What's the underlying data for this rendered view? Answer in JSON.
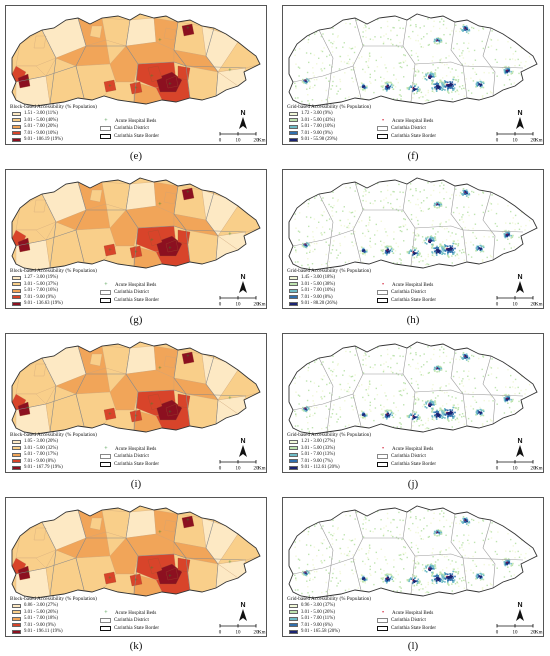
{
  "panels": [
    {
      "id": "e",
      "type": "block",
      "caption": "(e)",
      "legend_title": "Block-based Accessibility (% Population)",
      "classes": [
        {
          "label": "1.51 - 3.00 (11%)",
          "color": "#fde9c4"
        },
        {
          "label": "3.01 - 5.00 (40%)",
          "color": "#f9cf8a"
        },
        {
          "label": "5.01 - 7.00 (20%)",
          "color": "#f1a559"
        },
        {
          "label": "7.01 - 9.00 (10%)",
          "color": "#d8442a"
        },
        {
          "label": "9.01 - 106.19 (19%)",
          "color": "#8c1020"
        }
      ]
    },
    {
      "id": "f",
      "type": "grid",
      "caption": "(f)",
      "legend_title": "Grid-based Accessibility (% Population)",
      "classes": [
        {
          "label": "1.72 - 3.00 (9%)",
          "color": "#f1f8d8"
        },
        {
          "label": "3.01 - 5.00 (43%)",
          "color": "#bfe4b0"
        },
        {
          "label": "5.01 - 7.00 (10%)",
          "color": "#6fbcc6"
        },
        {
          "label": "7.01 - 9.00 (9%)",
          "color": "#2f6fae"
        },
        {
          "label": "9.01 - 55.98 (29%)",
          "color": "#1a2372"
        }
      ]
    },
    {
      "id": "g",
      "type": "block",
      "caption": "(g)",
      "legend_title": "Block-based Accessibility (% Population)",
      "classes": [
        {
          "label": "1.27 - 3.00 (19%)",
          "color": "#fde9c4"
        },
        {
          "label": "3.01 - 5.00 (37%)",
          "color": "#f9cf8a"
        },
        {
          "label": "5.01 - 7.00 (16%)",
          "color": "#f1a559"
        },
        {
          "label": "7.01 - 9.00 (9%)",
          "color": "#d8442a"
        },
        {
          "label": "9.01 - 136.63 (19%)",
          "color": "#8c1020"
        }
      ]
    },
    {
      "id": "h",
      "type": "grid",
      "caption": "(h)",
      "legend_title": "Grid-based Accessibility (% Population)",
      "classes": [
        {
          "label": "1.45 - 3.00 (18%)",
          "color": "#f1f8d8"
        },
        {
          "label": "3.01 - 5.00 (38%)",
          "color": "#bfe4b0"
        },
        {
          "label": "5.01 - 7.00 (10%)",
          "color": "#6fbcc6"
        },
        {
          "label": "7.01 - 9.00 (8%)",
          "color": "#2f6fae"
        },
        {
          "label": "9.01 - 88.20 (26%)",
          "color": "#1a2372"
        }
      ]
    },
    {
      "id": "i",
      "type": "block",
      "caption": "(i)",
      "legend_title": "Block-based Accessibility (% Population)",
      "classes": [
        {
          "label": "1.05 - 3.00 (20%)",
          "color": "#fde9c4"
        },
        {
          "label": "3.01 - 5.00 (32%)",
          "color": "#f9cf8a"
        },
        {
          "label": "5.01 - 7.00 (17%)",
          "color": "#f1a559"
        },
        {
          "label": "7.01 - 9.00 (8%)",
          "color": "#d8442a"
        },
        {
          "label": "9.01 - 167.79 (19%)",
          "color": "#8c1020"
        }
      ]
    },
    {
      "id": "j",
      "type": "grid",
      "caption": "(j)",
      "legend_title": "Grid-based Accessibility (% Population)",
      "classes": [
        {
          "label": "1.21 - 3.00 (27%)",
          "color": "#f1f8d8"
        },
        {
          "label": "3.01 - 5.00 (33%)",
          "color": "#bfe4b0"
        },
        {
          "label": "5.01 - 7.00 (13%)",
          "color": "#6fbcc6"
        },
        {
          "label": "7.01 - 9.00 (7%)",
          "color": "#2f6fae"
        },
        {
          "label": "9.01 - 112.61 (20%)",
          "color": "#1a2372"
        }
      ]
    },
    {
      "id": "k",
      "type": "block",
      "caption": "(k)",
      "legend_title": "Block-based Accessibility (% Population)",
      "classes": [
        {
          "label": "0.86 - 3.00 (27%)",
          "color": "#fde9c4"
        },
        {
          "label": "3.01 - 5.00 (26%)",
          "color": "#f9cf8a"
        },
        {
          "label": "5.01 - 7.00 (18%)",
          "color": "#f1a559"
        },
        {
          "label": "7.01 - 9.00 (9%)",
          "color": "#d8442a"
        },
        {
          "label": "9.01 - 196.11 (19%)",
          "color": "#8c1020"
        }
      ]
    },
    {
      "id": "l",
      "type": "grid",
      "caption": "(l)",
      "legend_title": "Grid-based Accessibility (% Population)",
      "classes": [
        {
          "label": "0.96 - 3.00 (37%)",
          "color": "#f1f8d8"
        },
        {
          "label": "3.01 - 5.00 (26%)",
          "color": "#bfe4b0"
        },
        {
          "label": "5.01 - 7.00 (11%)",
          "color": "#6fbcc6"
        },
        {
          "label": "7.01 - 9.00 (6%)",
          "color": "#2f6fae"
        },
        {
          "label": "9.01 - 165.58 (20%)",
          "color": "#1a2372"
        }
      ]
    }
  ],
  "legend_common": {
    "hospital_label": "Acute Hospital Beds",
    "district_label": "Carinthia District",
    "border_label": "Carinthia State Border",
    "block_hospital_color": "#2e8b2e",
    "grid_hospital_color": "#d0102a"
  },
  "north_label": "N",
  "scale": {
    "ticks": [
      "0",
      "10",
      "20"
    ],
    "unit": "Km"
  }
}
